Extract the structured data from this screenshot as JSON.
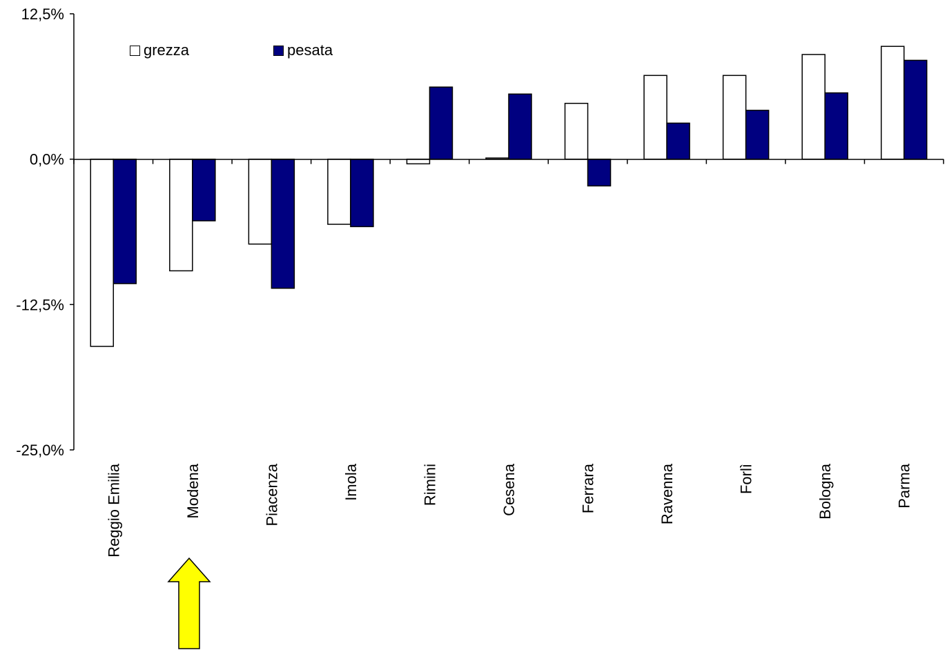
{
  "chart_data": {
    "type": "bar",
    "categories": [
      "Reggio Emilia",
      "Modena",
      "Piacenza",
      "Imola",
      "Rimini",
      "Cesena",
      "Ferrara",
      "Ravenna",
      "Forlì",
      "Bologna",
      "Parma"
    ],
    "series": [
      {
        "name": "grezza",
        "color": "#ffffff",
        "values": [
          -16.1,
          -9.6,
          -7.3,
          -5.6,
          -0.4,
          0.1,
          4.8,
          7.2,
          7.2,
          9.0,
          9.7
        ]
      },
      {
        "name": "pesata",
        "color": "#000080",
        "values": [
          -10.7,
          -5.3,
          -11.1,
          -5.8,
          6.2,
          5.6,
          -2.3,
          3.1,
          4.2,
          5.7,
          8.5
        ]
      }
    ],
    "ylim": [
      -25,
      12.5
    ],
    "yticks": [
      "12,5%",
      "0,0%",
      "-12,5%",
      "-25,0%"
    ],
    "ytick_values": [
      12.5,
      0,
      -12.5,
      -25
    ],
    "legend": "top-left",
    "grid": false,
    "annotation": {
      "shape": "yellow-arrow",
      "points_to": "Modena",
      "color": "#ffff00"
    }
  }
}
